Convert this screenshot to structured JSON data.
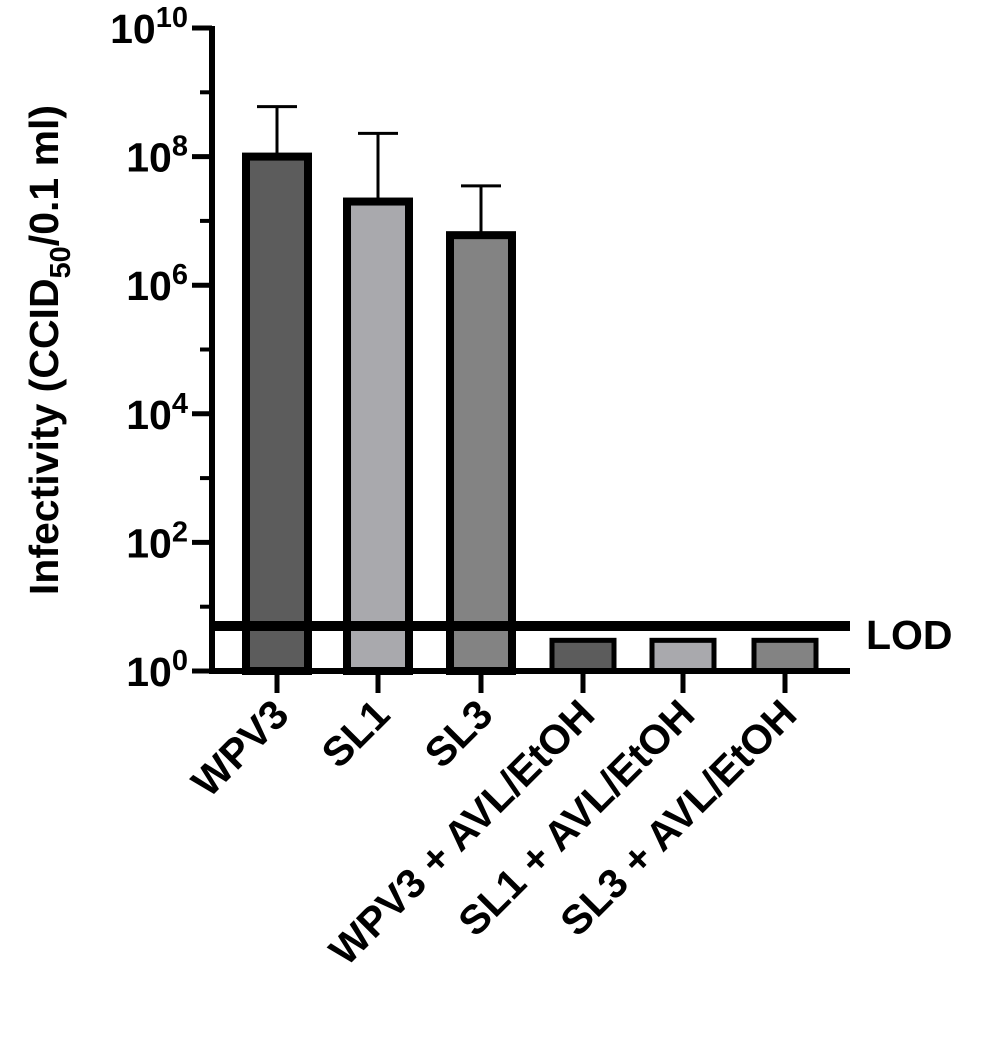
{
  "chart_data": {
    "type": "bar",
    "yscale": "log",
    "ylim": [
      1,
      10000000000
    ],
    "ylabel": {
      "main": "Infectivity (CCID",
      "sub": "50",
      "tail": "/0.1 ml)"
    },
    "yticks": [
      {
        "value": 1,
        "base": "10",
        "exp": "0"
      },
      {
        "value": 100,
        "base": "10",
        "exp": "2"
      },
      {
        "value": 10000,
        "base": "10",
        "exp": "4"
      },
      {
        "value": 1000000,
        "base": "10",
        "exp": "6"
      },
      {
        "value": 100000000,
        "base": "10",
        "exp": "8"
      },
      {
        "value": 10000000000,
        "base": "10",
        "exp": "10"
      }
    ],
    "categories": [
      "WPV3",
      "SL1",
      "SL3",
      "WPV3 + AVL/EtOH",
      "SL1 + AVL/EtOH",
      "SL3 + AVL/EtOH"
    ],
    "values": [
      100000000,
      20000000,
      6000000,
      3,
      3,
      3
    ],
    "error_upper": [
      600000000,
      230000000,
      35000000,
      null,
      null,
      null
    ],
    "bar_colors": [
      "#5c5c5c",
      "#a9a9ad",
      "#838383",
      "#5c5c5c",
      "#a9a9ad",
      "#838383"
    ],
    "lod": {
      "value": 5,
      "label": "LOD"
    },
    "grid": false,
    "legend": "none"
  }
}
